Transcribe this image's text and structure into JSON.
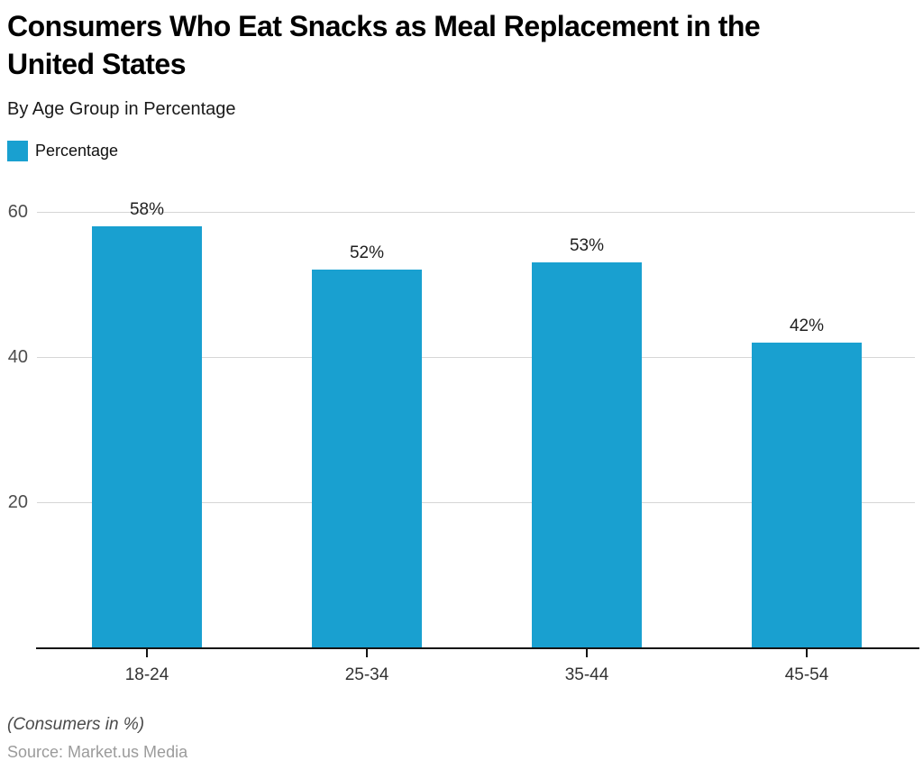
{
  "header": {
    "title": "Consumers Who Eat Snacks as Meal Replacement in the United States",
    "title_lines": [
      "Consumers Who Eat Snacks as Meal Replacement in the",
      "United States"
    ],
    "subtitle": "By Age Group in Percentage",
    "legend_label": "Percentage"
  },
  "footer": {
    "note": "(Consumers in %)",
    "source": "Source: Market.us Media"
  },
  "chart_data": {
    "type": "bar",
    "title": "Consumers Who Eat Snacks as Meal Replacement in the United States",
    "subtitle": "By Age Group in Percentage",
    "categories": [
      "18-24",
      "25-34",
      "35-44",
      "45-54"
    ],
    "series": [
      {
        "name": "Percentage",
        "values": [
          58,
          52,
          53,
          42
        ]
      }
    ],
    "data_labels": [
      "58%",
      "52%",
      "53%",
      "42%"
    ],
    "xlabel": "",
    "ylabel": "",
    "ylim": [
      0,
      64
    ],
    "yticks": [
      20,
      40,
      60
    ],
    "grid": true,
    "legend_position": "top-left",
    "colors": {
      "bar": "#19A0D0",
      "gridline": "#D6D6D6",
      "axis": "#141414",
      "ytick_label": "#4D4D4D",
      "xtick_label": "#333333",
      "data_label": "#1F1F1F"
    }
  }
}
